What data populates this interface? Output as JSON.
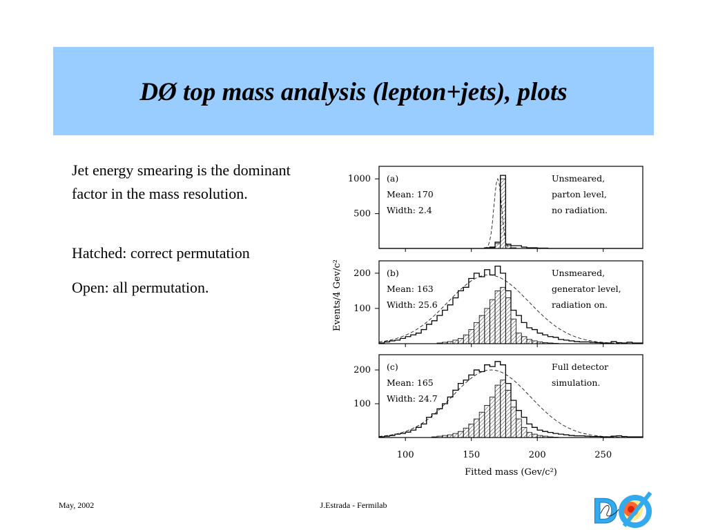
{
  "slide": {
    "title": "DØ top mass analysis (lepton+jets), plots",
    "paragraphs": [
      "Jet energy smearing is the dominant factor in the mass resolution.",
      "Hatched: correct permutation",
      "Open: all permutation."
    ],
    "footer_left": "May, 2002",
    "footer_center": "J.Estrada - Fermilab",
    "logo_text": "DØ",
    "colors": {
      "title_band": "#99ccff",
      "logo_blue": "#33aaee",
      "logo_red": "#dd2200"
    }
  },
  "chart_data": [
    {
      "type": "histogram",
      "panel": "(a)",
      "annotations": [
        "Mean: 170",
        "Width: 2.4"
      ],
      "description_lines": [
        "Unsmeared,",
        "parton level,",
        "no radiation."
      ],
      "ylabel": "Events/4 Gev/c²",
      "ylim": [
        0,
        1180
      ],
      "yticks": [
        500,
        1000
      ],
      "x": [
        80,
        84,
        88,
        92,
        96,
        100,
        104,
        108,
        112,
        116,
        120,
        124,
        128,
        132,
        136,
        140,
        144,
        148,
        152,
        156,
        160,
        164,
        168,
        172,
        176,
        180,
        184,
        188,
        192,
        196,
        200,
        204,
        208,
        212,
        216,
        220,
        224,
        228,
        232,
        236,
        240,
        244,
        248,
        252,
        256,
        260,
        264,
        268,
        272,
        276
      ],
      "series": [
        {
          "name": "Open: all permutation",
          "values": [
            0,
            0,
            0,
            0,
            0,
            0,
            0,
            0,
            0,
            0,
            0,
            0,
            0,
            0,
            0,
            0,
            0,
            0,
            0,
            0,
            10,
            20,
            90,
            1050,
            60,
            40,
            40,
            20,
            10,
            10,
            5,
            5,
            0,
            0,
            0,
            0,
            0,
            0,
            0,
            0,
            0,
            0,
            0,
            0,
            0,
            0,
            0,
            0,
            0,
            0
          ]
        },
        {
          "name": "Hatched: correct permutation",
          "values": [
            0,
            0,
            0,
            0,
            0,
            0,
            0,
            0,
            0,
            0,
            0,
            0,
            0,
            0,
            0,
            0,
            0,
            0,
            0,
            0,
            5,
            10,
            70,
            1000,
            40,
            10,
            0,
            0,
            0,
            0,
            0,
            0,
            0,
            0,
            0,
            0,
            0,
            0,
            0,
            0,
            0,
            0,
            0,
            0,
            0,
            0,
            0,
            0,
            0,
            0
          ]
        }
      ],
      "fit_curve": {
        "mean": 170,
        "width": 2.4,
        "amplitude": 1000
      }
    },
    {
      "type": "histogram",
      "panel": "(b)",
      "annotations": [
        "Mean: 163",
        "Width: 25.6"
      ],
      "description_lines": [
        "Unsmeared,",
        "generator level,",
        "radiation on."
      ],
      "ylabel": "Events/4 Gev/c²",
      "ylim": [
        0,
        235
      ],
      "yticks": [
        100,
        200
      ],
      "x": [
        80,
        84,
        88,
        92,
        96,
        100,
        104,
        108,
        112,
        116,
        120,
        124,
        128,
        132,
        136,
        140,
        144,
        148,
        152,
        156,
        160,
        164,
        168,
        172,
        176,
        180,
        184,
        188,
        192,
        196,
        200,
        204,
        208,
        212,
        216,
        220,
        224,
        228,
        232,
        236,
        240,
        244,
        248,
        252,
        256,
        260,
        264,
        268,
        272,
        276
      ],
      "series": [
        {
          "name": "Open: all permutation",
          "values": [
            2,
            5,
            8,
            10,
            15,
            20,
            25,
            30,
            40,
            55,
            65,
            80,
            95,
            110,
            130,
            150,
            160,
            185,
            200,
            190,
            210,
            195,
            220,
            200,
            150,
            95,
            80,
            60,
            45,
            40,
            30,
            25,
            20,
            18,
            12,
            10,
            8,
            6,
            5,
            5,
            4,
            3,
            2,
            2,
            6,
            3,
            2,
            4,
            2,
            2
          ]
        },
        {
          "name": "Hatched: correct permutation",
          "values": [
            0,
            0,
            0,
            0,
            0,
            0,
            0,
            0,
            0,
            0,
            0,
            2,
            4,
            6,
            10,
            15,
            25,
            40,
            60,
            80,
            100,
            125,
            150,
            160,
            130,
            70,
            30,
            20,
            12,
            8,
            5,
            3,
            2,
            1,
            0,
            0,
            0,
            0,
            0,
            0,
            0,
            0,
            0,
            0,
            0,
            0,
            0,
            0,
            0,
            0
          ]
        }
      ],
      "fit_curve": {
        "mean": 163,
        "width": 25.6,
        "amplitude": 195
      }
    },
    {
      "type": "histogram",
      "panel": "(c)",
      "annotations": [
        "Mean: 165",
        "Width: 24.7"
      ],
      "description_lines": [
        "Full detector",
        "simulation."
      ],
      "ylabel": "Events/4 Gev/c²",
      "xlabel": "Fitted mass (Gev/c²)",
      "xlim": [
        80,
        280
      ],
      "xticks": [
        100,
        150,
        200,
        250
      ],
      "ylim": [
        0,
        245
      ],
      "yticks": [
        100,
        200
      ],
      "x": [
        80,
        84,
        88,
        92,
        96,
        100,
        104,
        108,
        112,
        116,
        120,
        124,
        128,
        132,
        136,
        140,
        144,
        148,
        152,
        156,
        160,
        164,
        168,
        172,
        176,
        180,
        184,
        188,
        192,
        196,
        200,
        204,
        208,
        212,
        216,
        220,
        224,
        228,
        232,
        236,
        240,
        244,
        248,
        252,
        256,
        260,
        264,
        268,
        272,
        276
      ],
      "series": [
        {
          "name": "Open: all permutation",
          "values": [
            2,
            4,
            6,
            10,
            12,
            16,
            22,
            30,
            40,
            60,
            70,
            85,
            100,
            120,
            140,
            160,
            170,
            185,
            200,
            195,
            215,
            210,
            225,
            215,
            160,
            110,
            80,
            60,
            40,
            30,
            22,
            18,
            15,
            12,
            10,
            8,
            6,
            5,
            5,
            4,
            3,
            3,
            2,
            2,
            4,
            5,
            3,
            2,
            2,
            2
          ]
        },
        {
          "name": "Hatched: correct permutation",
          "values": [
            0,
            0,
            0,
            0,
            0,
            0,
            0,
            0,
            0,
            0,
            2,
            4,
            6,
            8,
            12,
            18,
            28,
            40,
            55,
            75,
            95,
            120,
            155,
            170,
            140,
            90,
            55,
            30,
            15,
            10,
            6,
            4,
            2,
            1,
            0,
            0,
            0,
            0,
            0,
            0,
            0,
            0,
            0,
            0,
            0,
            0,
            0,
            0,
            0,
            0
          ]
        }
      ],
      "fit_curve": {
        "mean": 165,
        "width": 24.7,
        "amplitude": 200
      }
    }
  ]
}
